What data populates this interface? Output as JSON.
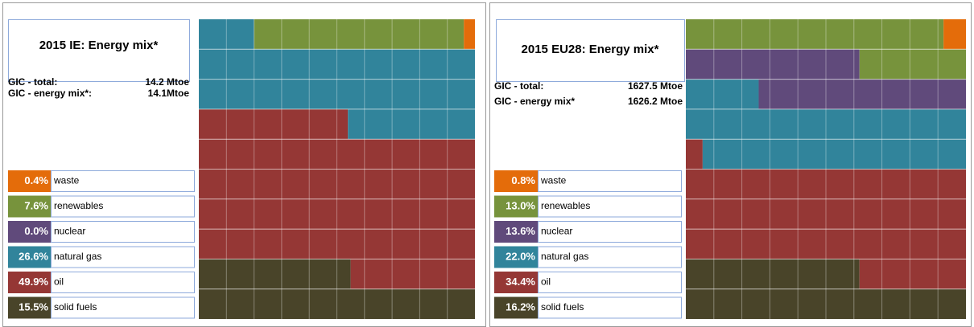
{
  "chart_data": [
    {
      "type": "waffle",
      "title": "2015 IE: Energy mix*",
      "info": [
        {
          "label": "GIC - total:",
          "value": "14.2 Mtoe"
        },
        {
          "label": "GIC - energy mix*:",
          "value": "14.1Mtoe"
        }
      ],
      "categories": [
        "waste",
        "renewables",
        "nuclear",
        "natural gas",
        "oil",
        "solid fuels"
      ],
      "values": [
        0.4,
        7.6,
        0.0,
        26.6,
        49.9,
        15.5
      ],
      "value_labels": [
        "0.4%",
        "7.6%",
        "0.0%",
        "26.6%",
        "49.9%",
        "15.5%"
      ],
      "colors": [
        "#e46c0a",
        "#77933c",
        "#604a7b",
        "#31849b",
        "#953735",
        "#494429"
      ]
    },
    {
      "type": "waffle",
      "title": "2015 EU28: Energy mix*",
      "info": [
        {
          "label": "GIC - total:",
          "value": "1627.5 Mtoe"
        },
        {
          "label": "GIC - energy mix*",
          "value": "1626.2 Mtoe"
        }
      ],
      "categories": [
        "waste",
        "renewables",
        "nuclear",
        "natural gas",
        "oil",
        "solid fuels"
      ],
      "values": [
        0.8,
        13.0,
        13.6,
        22.0,
        34.4,
        16.2
      ],
      "value_labels": [
        "0.8%",
        "13.0%",
        "13.6%",
        "22.0%",
        "34.4%",
        "16.2%"
      ],
      "colors": [
        "#e46c0a",
        "#77933c",
        "#604a7b",
        "#31849b",
        "#953735",
        "#494429"
      ]
    }
  ]
}
